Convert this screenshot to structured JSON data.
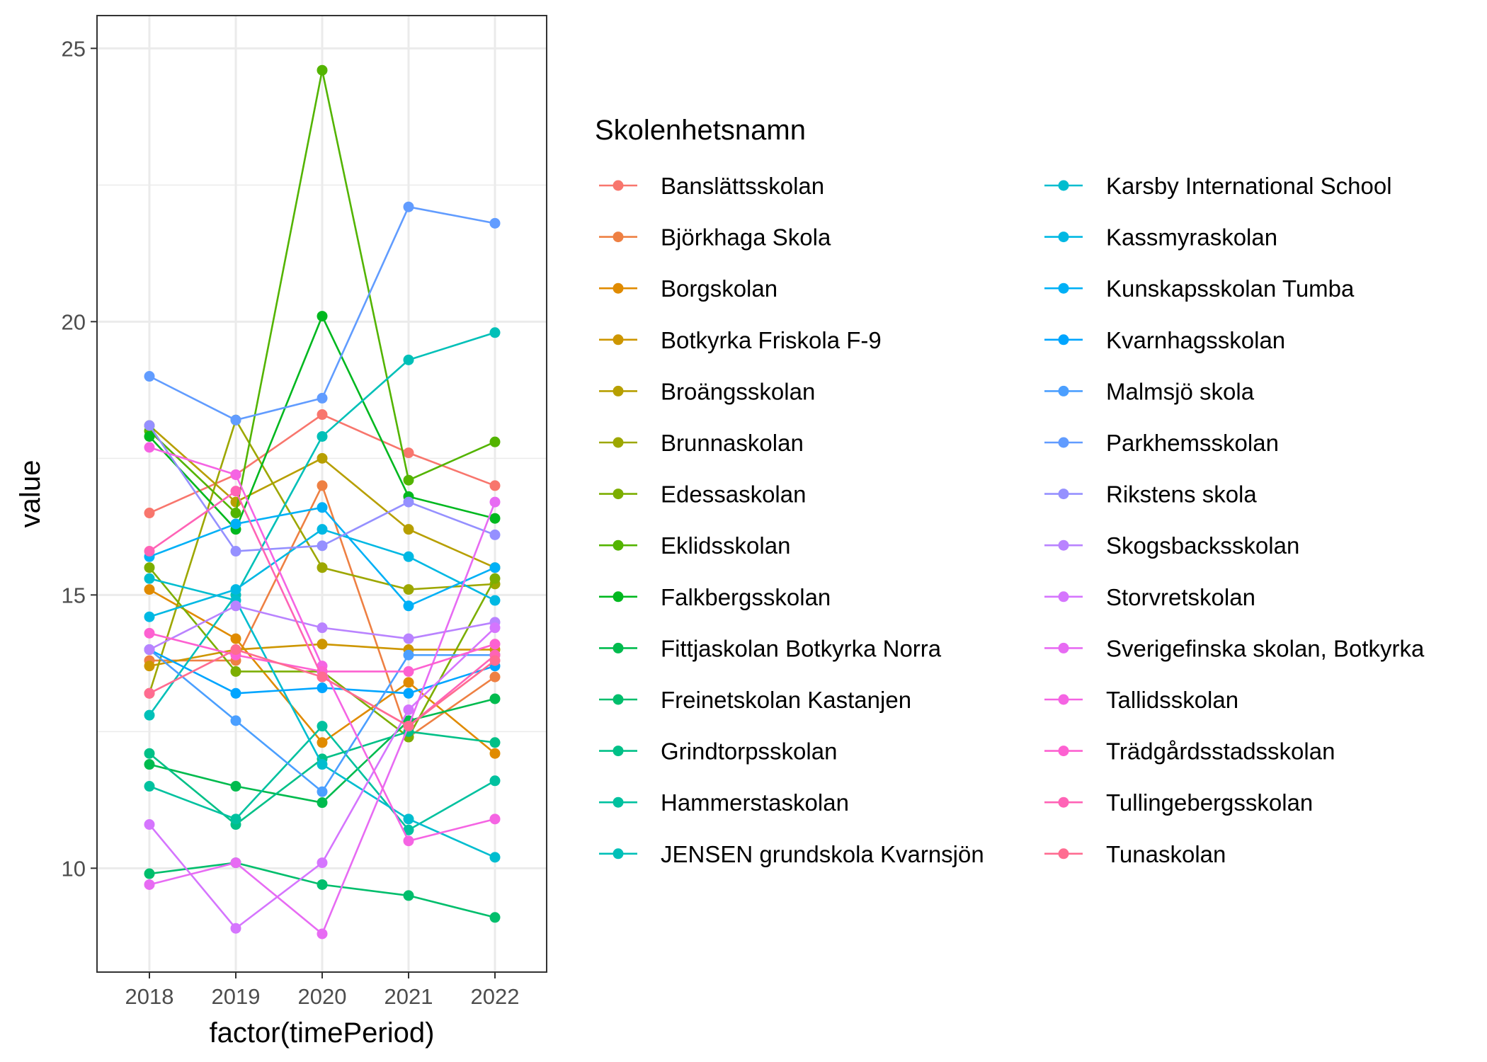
{
  "chart_data": {
    "type": "line",
    "xlabel": "factor(timePeriod)",
    "ylabel": "value",
    "x": [
      "2018",
      "2019",
      "2020",
      "2021",
      "2022"
    ],
    "ylim": [
      8.1,
      25.6
    ],
    "yticks": [
      10,
      15,
      20,
      25
    ],
    "grid": true,
    "legend_placement": "right",
    "legend_title": "Skolenhetsnamn",
    "series": [
      {
        "name": "Banslättsskolan",
        "color": "#F8766D",
        "values": [
          16.5,
          17.2,
          18.3,
          17.6,
          17.0
        ]
      },
      {
        "name": "Björkhaga Skola",
        "color": "#EE8043",
        "values": [
          13.8,
          13.8,
          17.0,
          12.4,
          13.5
        ]
      },
      {
        "name": "Borgskolan",
        "color": "#E08B00",
        "values": [
          15.1,
          14.2,
          12.3,
          13.4,
          12.1
        ]
      },
      {
        "name": "Botkyrka Friskola F-9",
        "color": "#CD9600",
        "values": [
          13.7,
          14.0,
          14.1,
          14.0,
          14.0
        ]
      },
      {
        "name": "Broängsskolan",
        "color": "#B79F00",
        "values": [
          18.1,
          16.7,
          17.5,
          16.2,
          15.5
        ]
      },
      {
        "name": "Brunnaskolan",
        "color": "#9DA700",
        "values": [
          13.2,
          18.2,
          15.5,
          15.1,
          15.2
        ]
      },
      {
        "name": "Edessaskolan",
        "color": "#7CAE00",
        "values": [
          15.5,
          13.6,
          13.6,
          12.4,
          15.3
        ]
      },
      {
        "name": "Eklidsskolan",
        "color": "#53B400",
        "values": [
          18.0,
          16.5,
          24.6,
          17.1,
          17.8
        ]
      },
      {
        "name": "Falkbergsskolan",
        "color": "#00B81F",
        "values": [
          17.9,
          16.2,
          20.1,
          16.8,
          16.4
        ]
      },
      {
        "name": "Fittjaskolan Botkyrka Norra",
        "color": "#00BB4E",
        "values": [
          11.9,
          11.5,
          11.2,
          12.7,
          13.1
        ]
      },
      {
        "name": "Freinetskolan Kastanjen",
        "color": "#00BE6C",
        "values": [
          9.9,
          10.1,
          9.7,
          9.5,
          9.1
        ]
      },
      {
        "name": "Grindtorpsskolan",
        "color": "#00C087",
        "values": [
          12.1,
          10.8,
          12.0,
          12.5,
          12.3
        ]
      },
      {
        "name": "Hammerstaskolan",
        "color": "#00C19F",
        "values": [
          11.5,
          10.9,
          12.6,
          10.7,
          11.6
        ]
      },
      {
        "name": "JENSEN grundskola Kvarnsjön",
        "color": "#00C0B8",
        "values": [
          12.8,
          15.0,
          17.9,
          19.3,
          19.8
        ]
      },
      {
        "name": "Karsby International School",
        "color": "#00BDCF",
        "values": [
          15.3,
          14.9,
          11.9,
          10.9,
          10.2
        ]
      },
      {
        "name": "Kassmyraskolan",
        "color": "#00B8E3",
        "values": [
          14.6,
          15.1,
          16.2,
          15.7,
          14.9
        ]
      },
      {
        "name": "Kunskapsskolan Tumba",
        "color": "#00B0F6",
        "values": [
          15.7,
          16.3,
          16.6,
          14.8,
          15.5
        ]
      },
      {
        "name": "Kvarnhagsskolan",
        "color": "#00A5FF",
        "values": [
          14.0,
          13.2,
          13.3,
          13.2,
          13.7
        ]
      },
      {
        "name": "Malmsjö skola",
        "color": "#4B9FFF",
        "values": [
          14.0,
          12.7,
          11.4,
          13.9,
          13.9
        ]
      },
      {
        "name": "Parkhemsskolan",
        "color": "#619CFF",
        "values": [
          19.0,
          18.2,
          18.6,
          22.1,
          21.8
        ]
      },
      {
        "name": "Rikstens skola",
        "color": "#9590FF",
        "values": [
          18.1,
          15.8,
          15.9,
          16.7,
          16.1
        ]
      },
      {
        "name": "Skogsbacksskolan",
        "color": "#B983FF",
        "values": [
          14.0,
          14.8,
          14.4,
          14.2,
          14.5
        ]
      },
      {
        "name": "Storvretskolan",
        "color": "#D575FE",
        "values": [
          10.8,
          8.9,
          10.1,
          12.9,
          14.4
        ]
      },
      {
        "name": "Sverigefinska skolan, Botkyrka",
        "color": "#E76BF3",
        "values": [
          9.7,
          10.1,
          8.8,
          12.6,
          16.7
        ]
      },
      {
        "name": "Tallidsskolan",
        "color": "#F564E3",
        "values": [
          17.7,
          17.2,
          13.7,
          10.5,
          10.9
        ]
      },
      {
        "name": "Trädgårdsstadsskolan",
        "color": "#FD61D1",
        "values": [
          14.3,
          13.9,
          13.6,
          13.6,
          14.1
        ]
      },
      {
        "name": "Tullingebergsskolan",
        "color": "#FF63B6",
        "values": [
          15.8,
          16.9,
          13.5,
          12.6,
          13.9
        ]
      },
      {
        "name": "Tunaskolan",
        "color": "#FF6C91",
        "values": [
          13.2,
          14.0,
          13.5,
          12.6,
          13.8
        ]
      }
    ]
  }
}
